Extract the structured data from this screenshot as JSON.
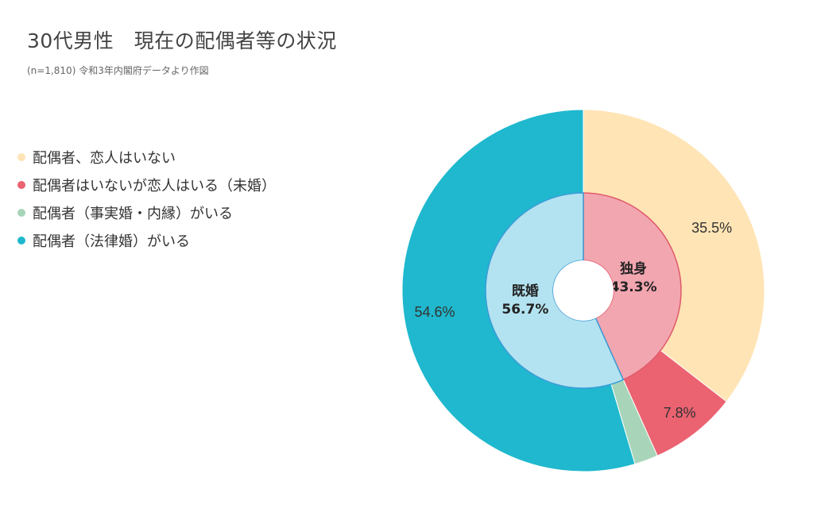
{
  "chart_data": {
    "type": "pie",
    "title": "30代男性　現在の配偶者等の状況",
    "subtitle": "(n=1,810)  令和3年内閣府データより作図",
    "legend_position": "top-left",
    "outer_ring": {
      "categories": [
        "配偶者、恋人はいない",
        "配偶者はいないが恋人はいる（未婚）",
        "配偶者（事実婚・内縁）がいる",
        "配偶者（法律婚）がいる"
      ],
      "values": [
        35.5,
        7.8,
        2.1,
        54.6
      ],
      "labels": [
        "35.5%",
        "7.8%",
        "",
        "54.6%"
      ],
      "colors": [
        "#FFE4B5",
        "#EB6271",
        "#A8D5B9",
        "#1FB8CE"
      ]
    },
    "inner_ring": {
      "categories": [
        "独身",
        "既婚"
      ],
      "values": [
        43.3,
        56.7
      ],
      "labels": [
        "43.3%",
        "56.7%"
      ],
      "colors": [
        "#F2A6B0",
        "#B3E3F0"
      ],
      "stroke_colors": [
        "#E05A6A",
        "#3A9BD8"
      ]
    }
  }
}
